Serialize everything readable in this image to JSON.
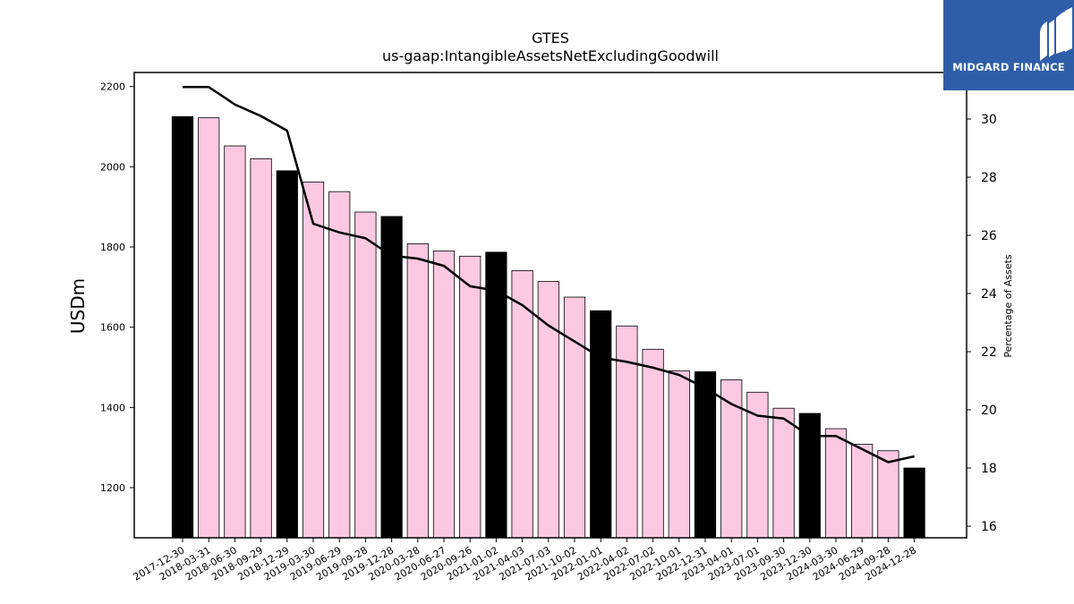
{
  "chart_data": {
    "type": "bar",
    "title": "GTES",
    "subtitle": "us-gaap:IntangibleAssetsNetExcludingGoodwill",
    "ylabel": "USDm",
    "y2label": "Percentage of Assets",
    "ylim": [
      1075,
      2235
    ],
    "y2lim": [
      15.6,
      31.6
    ],
    "yticks": [
      1200,
      1400,
      1600,
      1800,
      2000,
      2200
    ],
    "y2ticks": [
      16,
      18,
      20,
      22,
      24,
      26,
      28,
      30
    ],
    "categories": [
      "2017-12-30",
      "2018-03-31",
      "2018-06-30",
      "2018-09-29",
      "2018-12-29",
      "2019-03-30",
      "2019-06-29",
      "2019-09-28",
      "2019-12-28",
      "2020-03-28",
      "2020-06-27",
      "2020-09-26",
      "2021-01-02",
      "2021-04-03",
      "2021-07-03",
      "2021-10-02",
      "2022-01-01",
      "2022-04-02",
      "2022-07-02",
      "2022-10-01",
      "2022-12-31",
      "2023-04-01",
      "2023-07-01",
      "2023-09-30",
      "2023-12-30",
      "2024-03-30",
      "2024-06-29",
      "2024-09-28",
      "2024-12-28"
    ],
    "series": [
      {
        "type": "bar",
        "values": [
          2125,
          2122,
          2052,
          2020,
          1990,
          1962,
          1938,
          1887,
          1876,
          1808,
          1790,
          1777,
          1787,
          1741,
          1714,
          1675,
          1641,
          1603,
          1545,
          1491,
          1489,
          1469,
          1438,
          1398,
          1385,
          1347,
          1308,
          1292,
          1249
        ],
        "highlight": [
          true,
          false,
          false,
          false,
          true,
          false,
          false,
          false,
          true,
          false,
          false,
          false,
          true,
          false,
          false,
          false,
          true,
          false,
          false,
          false,
          true,
          false,
          false,
          false,
          true,
          false,
          false,
          false,
          true
        ],
        "color": "#fcc8e2",
        "highlight_color": "#000000"
      },
      {
        "type": "line",
        "axis": "right",
        "values": [
          31.1,
          31.1,
          30.5,
          30.1,
          29.6,
          26.4,
          26.1,
          25.9,
          25.3,
          25.2,
          24.95,
          24.25,
          24.1,
          23.6,
          22.9,
          22.35,
          21.8,
          21.65,
          21.45,
          21.2,
          20.75,
          20.2,
          19.8,
          19.7,
          19.1,
          19.1,
          18.65,
          18.2,
          18.4
        ],
        "color": "#000000"
      }
    ],
    "legend": "none",
    "grid": false
  },
  "logo": {
    "text": "MIDGARD FINANCE",
    "icon": "midgard-logo-icon"
  }
}
